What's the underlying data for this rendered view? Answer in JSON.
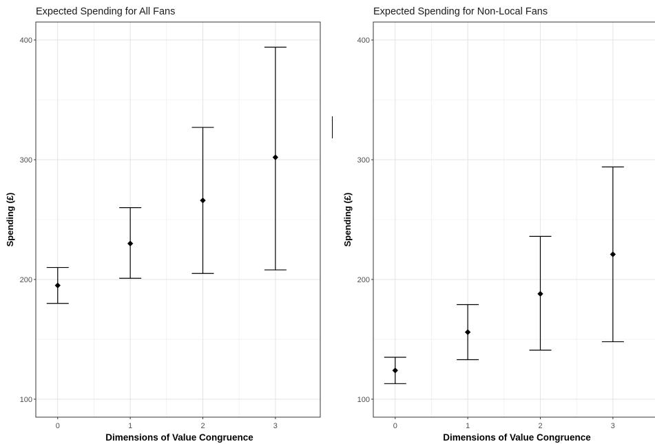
{
  "chart_data": [
    {
      "type": "scatter",
      "title": "Expected Spending for All Fans",
      "xlabel": "Dimensions of Value Congruence",
      "ylabel": "Spending (£)",
      "categories": [
        "0",
        "1",
        "2",
        "3"
      ],
      "yticks": [
        "100",
        "200",
        "300",
        "400"
      ],
      "ylim": [
        85,
        415
      ],
      "grid": true,
      "points": [
        {
          "x": "0",
          "y": 195,
          "lower": 180,
          "upper": 210
        },
        {
          "x": "1",
          "y": 230,
          "lower": 201,
          "upper": 260
        },
        {
          "x": "2",
          "y": 266,
          "lower": 205,
          "upper": 327
        },
        {
          "x": "3",
          "y": 302,
          "lower": 208,
          "upper": 394
        }
      ]
    },
    {
      "type": "scatter",
      "title": "Expected Spending for Non-Local Fans",
      "xlabel": "Dimensions of Value Congruence",
      "ylabel": "Spending (£)",
      "categories": [
        "0",
        "1",
        "2",
        "3"
      ],
      "yticks": [
        "100",
        "200",
        "300",
        "400"
      ],
      "ylim": [
        85,
        415
      ],
      "grid": true,
      "points": [
        {
          "x": "0",
          "y": 124,
          "lower": 113,
          "upper": 135
        },
        {
          "x": "1",
          "y": 156,
          "lower": 133,
          "upper": 179
        },
        {
          "x": "2",
          "y": 188,
          "lower": 141,
          "upper": 236
        },
        {
          "x": "3",
          "y": 221,
          "lower": 148,
          "upper": 294
        }
      ]
    }
  ]
}
